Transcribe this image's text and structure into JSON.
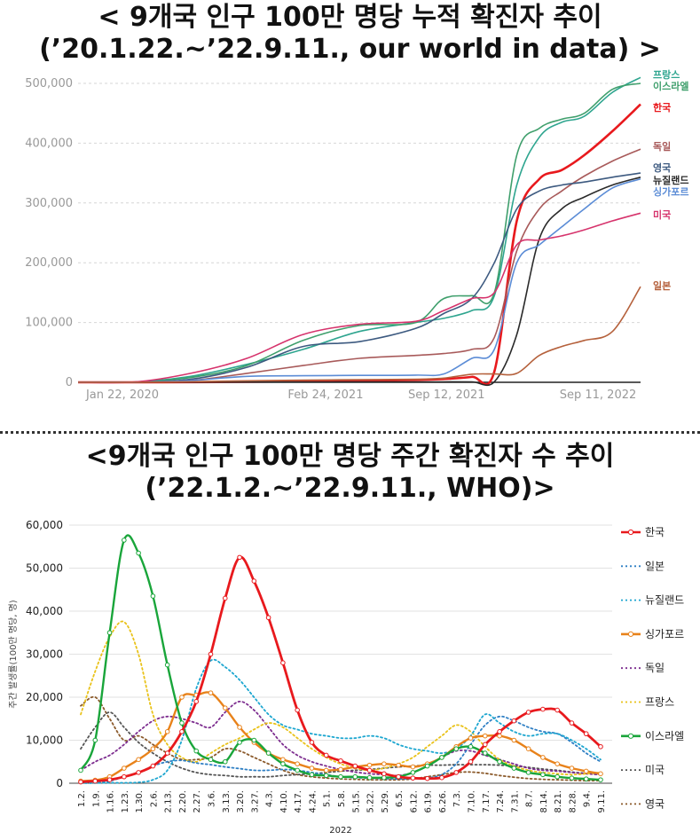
{
  "chart1": {
    "title_line1": "< 9개국 인구 100만 명당 누적 확진자 추이",
    "title_line2": "(’20.1.22.~’22.9.11., our world in data) >"
  },
  "chart2": {
    "title_line1": "<9개국 인구 100만 명당 주간 확진자 수 추이",
    "title_line2": "(’22.1.2.~’22.9.11., WHO)>"
  },
  "chart_data": [
    {
      "type": "line",
      "title": "< 9개국 인구 100만 명당 누적 확진자 추이 (’20.1.22.~’22.9.11., our world in data) >",
      "xlabel": "",
      "ylabel": "",
      "ylim": [
        0,
        500000
      ],
      "yticks": [
        0,
        100000,
        200000,
        300000,
        400000,
        500000
      ],
      "ytick_labels": [
        "0",
        "100,000",
        "200,000",
        "300,000",
        "400,000",
        "500,000"
      ],
      "xticks": [
        {
          "x": 0,
          "label": "Jan 22, 2020"
        },
        {
          "x": 0.44,
          "label": "Feb 24, 2021"
        },
        {
          "x": 0.655,
          "label": "Sep 12, 2021"
        },
        {
          "x": 1,
          "label": "Sep 11, 2022"
        }
      ],
      "grid": true,
      "legend": "right-end labels",
      "x": [
        0,
        0.1,
        0.2,
        0.3,
        0.4,
        0.5,
        0.6,
        0.65,
        0.7,
        0.74,
        0.78,
        0.82,
        0.86,
        0.9,
        0.95,
        1.0
      ],
      "series": [
        {
          "name": "프랑스",
          "color": "#2ea58f",
          "values": [
            0,
            500,
            10000,
            30000,
            55000,
            85000,
            100000,
            107000,
            120000,
            145000,
            330000,
            410000,
            435000,
            445000,
            485000,
            510000
          ]
        },
        {
          "name": "이스라엘",
          "color": "#3f9f6c",
          "values": [
            0,
            300,
            8000,
            28000,
            70000,
            95000,
            100000,
            140000,
            145000,
            150000,
            380000,
            425000,
            440000,
            450000,
            490000,
            500000
          ]
        },
        {
          "name": "한국",
          "color": "#e8191d",
          "values": [
            0,
            50,
            300,
            800,
            1500,
            2500,
            4000,
            5500,
            9000,
            18000,
            270000,
            340000,
            355000,
            380000,
            420000,
            465000
          ]
        },
        {
          "name": "독일",
          "color": "#a85a5a",
          "values": [
            0,
            200,
            3000,
            15000,
            28000,
            40000,
            45000,
            48000,
            55000,
            75000,
            220000,
            290000,
            320000,
            345000,
            370000,
            390000
          ]
        },
        {
          "name": "영국",
          "color": "#3d5a80",
          "values": [
            0,
            300,
            5000,
            25000,
            60000,
            68000,
            90000,
            115000,
            140000,
            200000,
            290000,
            320000,
            330000,
            335000,
            343000,
            350000
          ]
        },
        {
          "name": "뉴질랜드",
          "color": "#2a2a2a",
          "values": [
            0,
            50,
            300,
            400,
            500,
            600,
            700,
            800,
            800,
            900,
            80000,
            240000,
            290000,
            310000,
            330000,
            343000
          ]
        },
        {
          "name": "싱가포르",
          "color": "#5b8cd6",
          "values": [
            0,
            200,
            3000,
            10000,
            11000,
            11500,
            12000,
            14000,
            40000,
            55000,
            200000,
            230000,
            260000,
            290000,
            325000,
            340000
          ]
        },
        {
          "name": "미국",
          "color": "#d6336c",
          "values": [
            0,
            500,
            15000,
            40000,
            80000,
            97000,
            102000,
            120000,
            140000,
            150000,
            230000,
            238000,
            245000,
            255000,
            270000,
            283000
          ]
        },
        {
          "name": "일본",
          "color": "#b5613c",
          "values": [
            0,
            50,
            1000,
            2500,
            3500,
            4500,
            5000,
            7000,
            13500,
            14000,
            15000,
            45000,
            60000,
            70000,
            85000,
            160000
          ]
        }
      ]
    },
    {
      "type": "line",
      "title": "<9개국 인구 100만 명당 주간 확진자 수 추이 (’22.1.2.~’22.9.11., WHO)>",
      "xlabel": "2022",
      "ylabel": "주간 발생률(100만 명당, 명)",
      "ylim": [
        0,
        60000
      ],
      "yticks": [
        0,
        10000,
        20000,
        30000,
        40000,
        50000,
        60000
      ],
      "ytick_labels": [
        "0",
        "10,000",
        "20,000",
        "30,000",
        "40,000",
        "50,000",
        "60,000"
      ],
      "grid": true,
      "legend": "right",
      "categories": [
        "1.2.",
        "1.9.",
        "1.16.",
        "1.23.",
        "1.30.",
        "2.6.",
        "2.13.",
        "2.20.",
        "2.27.",
        "3.6.",
        "3.13.",
        "3.20.",
        "3.27.",
        "4.3.",
        "4.10.",
        "4.17.",
        "4.24.",
        "5.1.",
        "5.8.",
        "5.15.",
        "5.22.",
        "5.29.",
        "6.5.",
        "6.12.",
        "6.19.",
        "6.26.",
        "7.3.",
        "7.10.",
        "7.17.",
        "7.24.",
        "7.31.",
        "8.7.",
        "8.14.",
        "8.21.",
        "8.28.",
        "9.4.",
        "9.11."
      ],
      "series": [
        {
          "name": "한국",
          "color": "#e8191d",
          "style": "solid-markers",
          "values": [
            300,
            500,
            800,
            1500,
            2500,
            4000,
            7000,
            12000,
            19000,
            30000,
            43000,
            52500,
            47000,
            38500,
            28000,
            17000,
            9500,
            6500,
            5200,
            4000,
            3000,
            2200,
            1500,
            1200,
            1100,
            1300,
            2500,
            5000,
            9000,
            12000,
            14500,
            16500,
            17200,
            17000,
            14000,
            11500,
            8500
          ]
        },
        {
          "name": "일본",
          "color": "#2f7fc4",
          "style": "dotted",
          "values": [
            50,
            100,
            500,
            1500,
            2500,
            4000,
            5000,
            5300,
            4700,
            4300,
            3800,
            3400,
            3000,
            3000,
            3200,
            3000,
            2500,
            2000,
            1500,
            1300,
            1200,
            1100,
            1000,
            1100,
            1200,
            2000,
            4500,
            9000,
            13500,
            15500,
            14500,
            13000,
            12000,
            11500,
            9500,
            7000,
            5000
          ]
        },
        {
          "name": "뉴질랜드",
          "color": "#1ca6d0",
          "style": "dotted",
          "values": [
            50,
            50,
            100,
            100,
            200,
            800,
            3000,
            10000,
            22000,
            28500,
            27000,
            24000,
            20000,
            16000,
            13500,
            12500,
            11500,
            11000,
            10500,
            10500,
            11000,
            10500,
            9000,
            8000,
            7500,
            7000,
            8000,
            11000,
            16000,
            14000,
            12000,
            11000,
            11500,
            11500,
            10000,
            8000,
            5500
          ]
        },
        {
          "name": "싱가포르",
          "color": "#e8821a",
          "style": "solid-markers",
          "values": [
            500,
            700,
            1500,
            3500,
            5500,
            8000,
            12000,
            20000,
            20500,
            21000,
            17500,
            13000,
            9500,
            7000,
            5500,
            4500,
            3500,
            3000,
            3200,
            3800,
            4200,
            4500,
            4200,
            3800,
            4500,
            6000,
            8500,
            10500,
            11000,
            11000,
            10000,
            8000,
            6000,
            4500,
            3500,
            2800,
            2200
          ]
        },
        {
          "name": "독일",
          "color": "#7d2d8f",
          "style": "dotted",
          "values": [
            3000,
            5000,
            6500,
            9000,
            12000,
            14500,
            15500,
            15000,
            14000,
            13000,
            16500,
            19000,
            17000,
            13000,
            9000,
            6500,
            5000,
            4000,
            3200,
            2600,
            2200,
            2000,
            1800,
            2500,
            4000,
            6000,
            7500,
            7500,
            6500,
            5500,
            4500,
            3500,
            3000,
            2800,
            2500,
            2200,
            2000
          ]
        },
        {
          "name": "프랑스",
          "color": "#e9c219",
          "style": "dotted",
          "values": [
            16000,
            26000,
            34000,
            37500,
            30000,
            16000,
            9000,
            6000,
            5000,
            7000,
            9000,
            10500,
            12500,
            14000,
            13000,
            10500,
            8000,
            6000,
            4500,
            3500,
            3000,
            3500,
            4500,
            6000,
            8500,
            11000,
            13500,
            12000,
            8500,
            5500,
            4000,
            3000,
            2500,
            2200,
            2000,
            2200,
            2500
          ]
        },
        {
          "name": "이스라엘",
          "color": "#19a53a",
          "style": "solid-markers",
          "values": [
            3000,
            10000,
            35000,
            56500,
            53500,
            43500,
            27500,
            14000,
            7500,
            5500,
            5000,
            9500,
            10000,
            7000,
            4500,
            3000,
            2000,
            1800,
            1500,
            1500,
            1300,
            1300,
            1500,
            2500,
            4000,
            6000,
            8000,
            8500,
            7000,
            5000,
            3500,
            2500,
            2000,
            1500,
            1200,
            1000,
            800
          ]
        },
        {
          "name": "미국",
          "color": "#555555",
          "style": "dotted",
          "values": [
            8000,
            13000,
            16500,
            13000,
            9500,
            7000,
            5000,
            3500,
            2500,
            2000,
            1800,
            1500,
            1500,
            1500,
            1800,
            2000,
            2200,
            2500,
            2800,
            3000,
            3200,
            3500,
            3800,
            4000,
            4200,
            4200,
            4300,
            4300,
            4300,
            4200,
            4000,
            3700,
            3300,
            3000,
            2600,
            2300,
            2000
          ]
        },
        {
          "name": "영국",
          "color": "#8b5a2b",
          "style": "dotted",
          "values": [
            18000,
            20000,
            15000,
            10000,
            11000,
            9000,
            7000,
            5500,
            5500,
            6000,
            8000,
            7500,
            6000,
            4500,
            3000,
            2000,
            1500,
            1200,
            1000,
            900,
            800,
            800,
            800,
            1000,
            1500,
            2000,
            2500,
            2600,
            2300,
            1800,
            1400,
            1100,
            900,
            800,
            700,
            600,
            600
          ]
        }
      ]
    }
  ]
}
